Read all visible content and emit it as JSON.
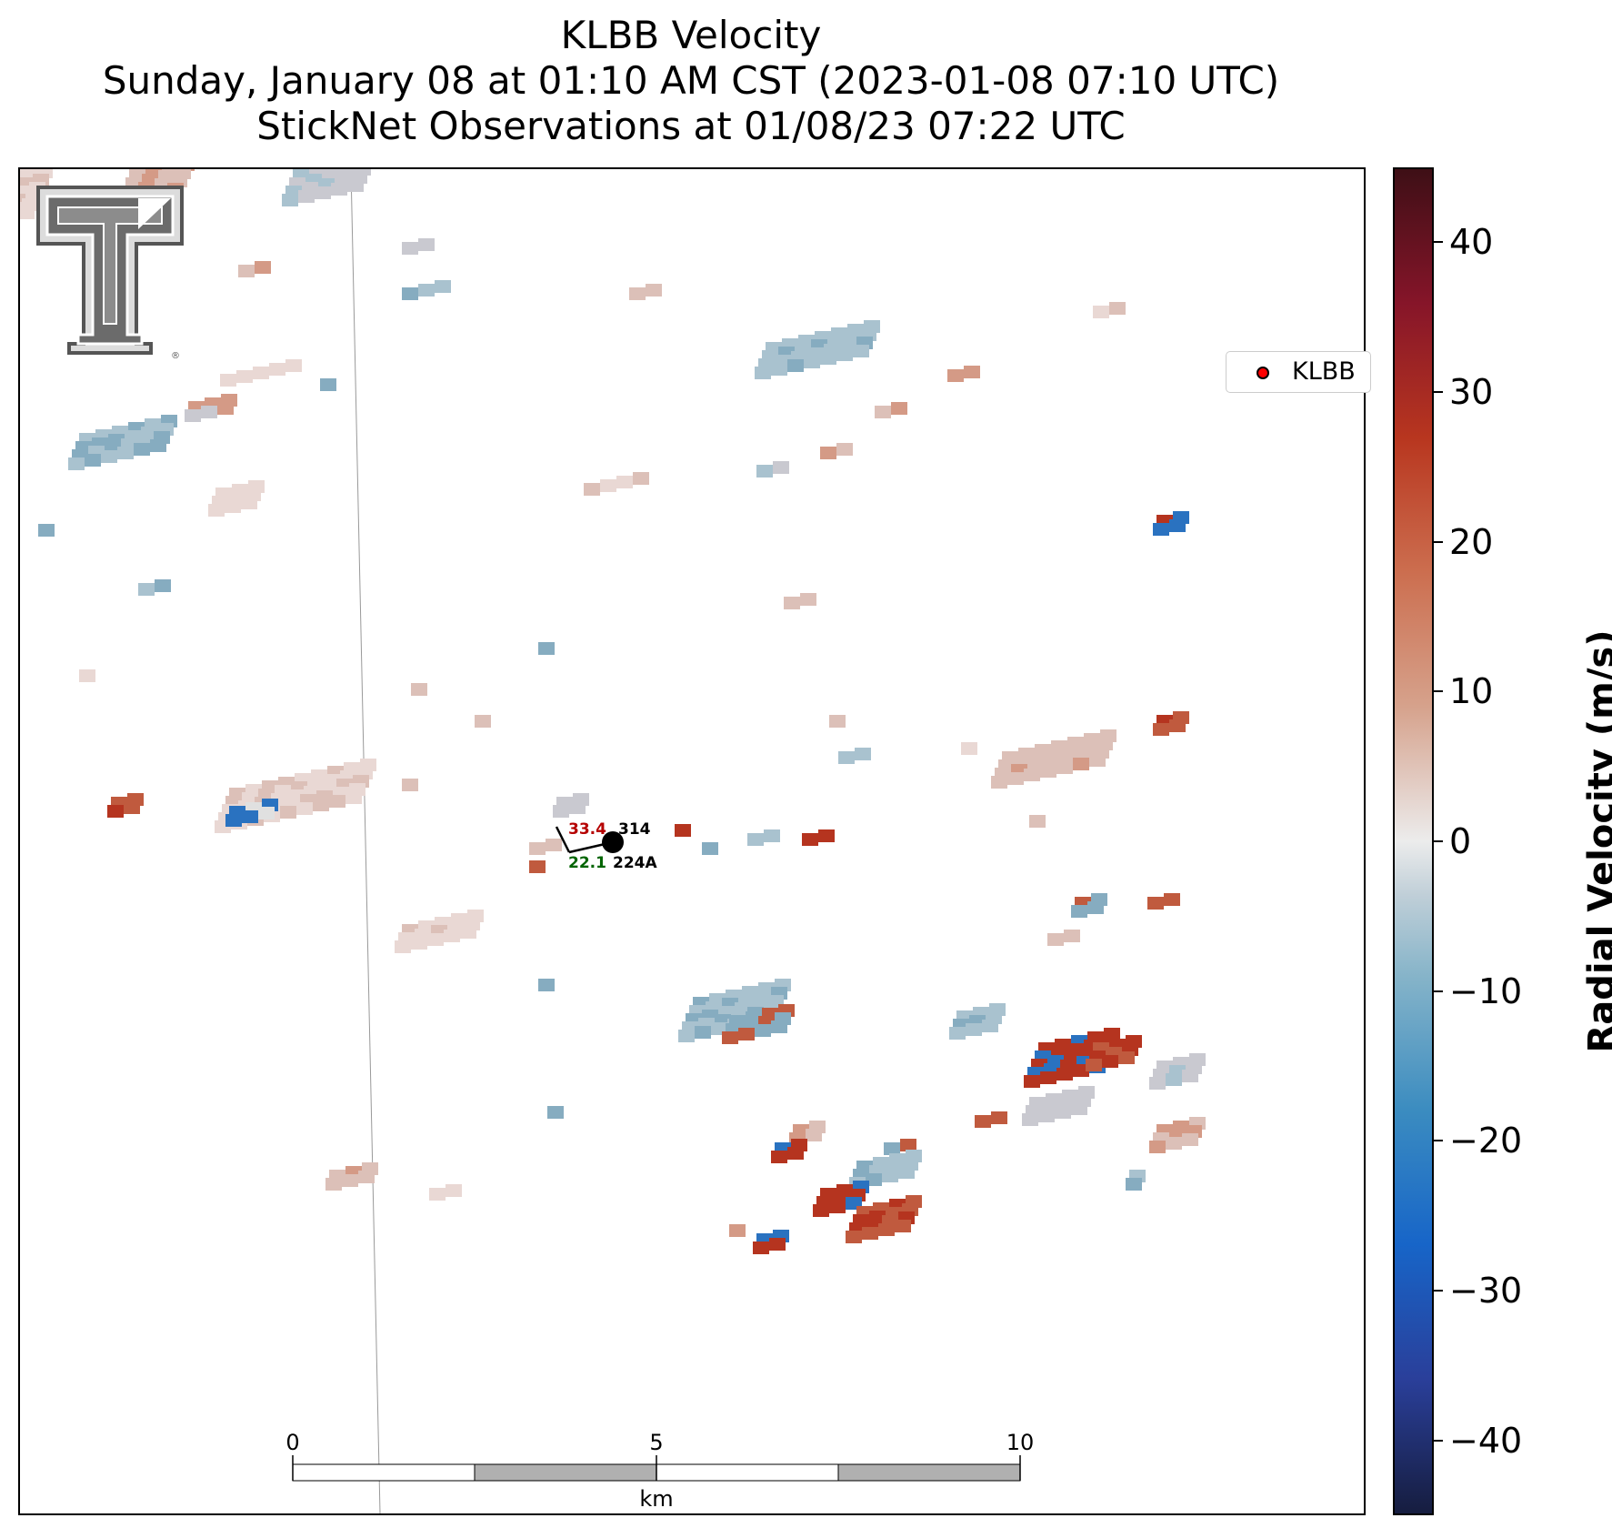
{
  "title": {
    "line1": "KLBB Velocity",
    "line2": "Sunday, January 08 at 01:10 AM CST (2023-01-08 07:10 UTC)",
    "line3": "StickNet Observations at 01/08/23 07:22 UTC"
  },
  "legend": {
    "label": "KLBB",
    "marker_color": "#ff0000"
  },
  "colorbar": {
    "label": "Radial Velocity (m/s)",
    "range": [
      -45,
      45
    ],
    "ticks": [
      "40",
      "30",
      "20",
      "10",
      "0",
      "−10",
      "−20",
      "−30",
      "−40"
    ]
  },
  "station": {
    "temperature": "33.4",
    "dewpoint": "22.1",
    "pressure": "314",
    "id": "224A",
    "temperature_color": "#b50000",
    "dewpoint_color": "#006400"
  },
  "scale_bar": {
    "ticks": [
      "0",
      "5",
      "10"
    ],
    "unit": "km"
  },
  "logo": {
    "name": "Texas Tech Double T"
  }
}
